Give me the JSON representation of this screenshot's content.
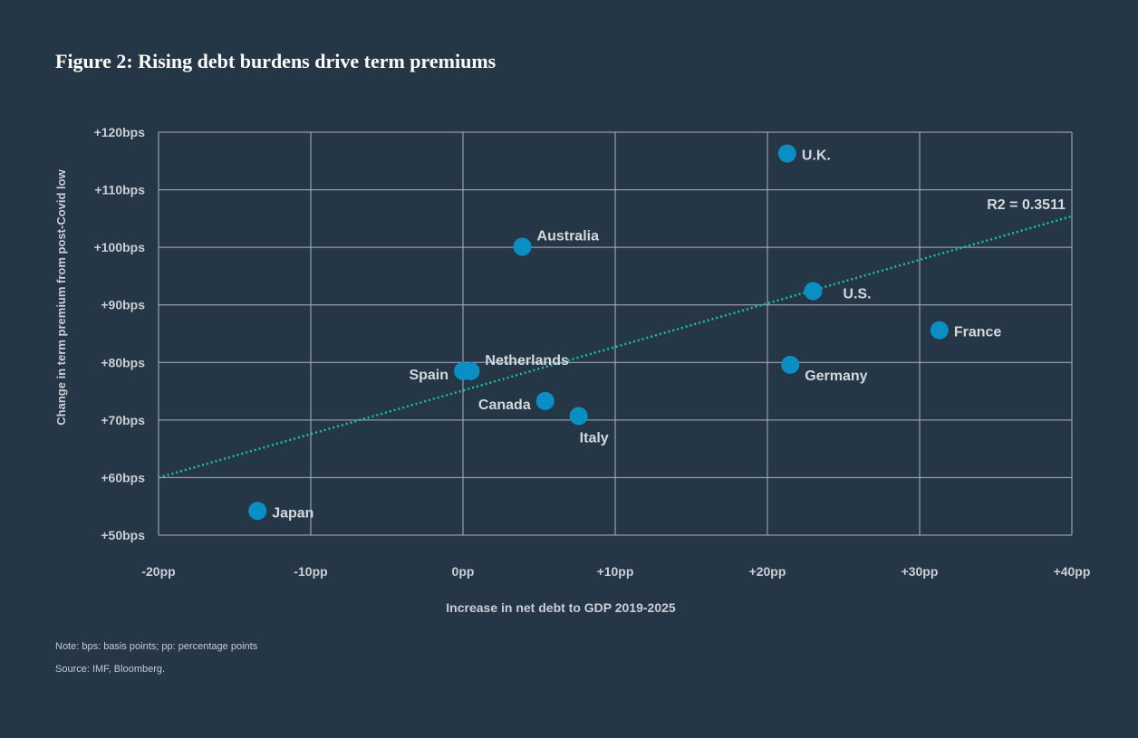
{
  "figure": {
    "title": "Figure 2: Rising debt burdens drive term premiums",
    "note": "Note: bps: basis points; pp: percentage points",
    "source": "Source: IMF, Bloomberg."
  },
  "chart_data": {
    "type": "scatter",
    "title": "Figure 2: Rising debt burdens drive term premiums",
    "xlabel": "Increase in net debt to GDP 2019-2025",
    "ylabel": "Change in term premium from post-Covid low",
    "xlim": [
      -20,
      40
    ],
    "ylim": [
      50,
      120
    ],
    "x_ticks": [
      -20,
      -10,
      0,
      10,
      20,
      30,
      40
    ],
    "x_tick_labels": [
      "-20pp",
      "-10pp",
      "0pp",
      "+10pp",
      "+20pp",
      "+30pp",
      "+40pp"
    ],
    "y_ticks": [
      50,
      60,
      70,
      80,
      90,
      100,
      110,
      120
    ],
    "y_tick_labels": [
      "+50bps",
      "+60bps",
      "+70bps",
      "+80bps",
      "+90bps",
      "+100bps",
      "+110bps",
      "+120bps"
    ],
    "grid": true,
    "points": [
      {
        "label": "Japan",
        "x": -13.5,
        "y": 54.2,
        "label_pos": "right"
      },
      {
        "label": "Spain",
        "x": 0.0,
        "y": 78.5,
        "label_pos": "left"
      },
      {
        "label": "Netherlands",
        "x": 0.5,
        "y": 78.5,
        "label_pos": "above-right"
      },
      {
        "label": "Australia",
        "x": 3.9,
        "y": 100.1,
        "label_pos": "above-right"
      },
      {
        "label": "Canada",
        "x": 5.4,
        "y": 73.3,
        "label_pos": "left"
      },
      {
        "label": "Italy",
        "x": 7.6,
        "y": 70.7,
        "label_pos": "below"
      },
      {
        "label": "U.K.",
        "x": 21.3,
        "y": 116.3,
        "label_pos": "right"
      },
      {
        "label": "Germany",
        "x": 21.5,
        "y": 79.6,
        "label_pos": "below-right"
      },
      {
        "label": "U.S.",
        "x": 23.0,
        "y": 92.4,
        "label_pos": "right-below"
      },
      {
        "label": "France",
        "x": 31.3,
        "y": 85.6,
        "label_pos": "right"
      }
    ],
    "trendline": {
      "style": "dotted",
      "x": [
        -20,
        40
      ],
      "y": [
        60.0,
        105.4
      ],
      "label": "R2 = 0.3511"
    },
    "colors": {
      "background": "#253647",
      "point": "#0a8fc4",
      "trendline": "#1bc0a0",
      "grid": "#aeb4ba",
      "text": "#e6e8ea"
    }
  }
}
